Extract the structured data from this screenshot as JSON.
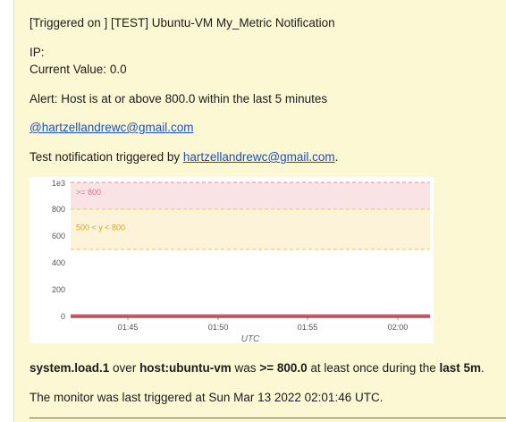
{
  "notification": {
    "title": "[Triggered on ] [TEST] Ubuntu-VM My_Metric Notification",
    "ip_label": "IP:",
    "current_value_label": "Current Value:",
    "current_value": "0.0",
    "alert_text": "Alert: Host is at or above 800.0 within the last 5 minutes",
    "mention_link": "@hartzellandrewc@gmail.com",
    "test_prefix": "Test notification triggered by ",
    "test_link": "hartzellandrewc@gmail.com",
    "test_suffix": ".",
    "summary": {
      "metric": "system.load.1",
      "over": " over ",
      "host": "host:ubuntu-vm",
      "was": " was ",
      "condition": ">= 800.0",
      "mid": " at least once during the ",
      "window": "last 5m",
      "end": "."
    },
    "last_triggered": "The monitor was last triggered at Sun Mar 13 2022 02:01:46 UTC."
  },
  "chart_data": {
    "type": "line",
    "title": "",
    "xlabel": "UTC",
    "ylabel": "",
    "scale_label": "1e3",
    "ylim": [
      0,
      1000
    ],
    "y_ticks": [
      0,
      200,
      400,
      600,
      800
    ],
    "y_tick_labels": [
      "0",
      "200",
      "400",
      "600",
      "800"
    ],
    "x_tick_labels": [
      "01:45",
      "01:50",
      "01:55",
      "02:00"
    ],
    "bands": [
      {
        "label": ">= 800",
        "from": 800,
        "to": 1000,
        "color": "#f9e3e5",
        "line_color": "#e8929a",
        "text_color": "#e0707c"
      },
      {
        "label": "500 < y < 800",
        "from": 500,
        "to": 800,
        "color": "#fdf3d8",
        "line_color": "#e6c455",
        "text_color": "#d9a414"
      }
    ],
    "series": [
      {
        "values": [
          0,
          0,
          0,
          0,
          0,
          0,
          0,
          0,
          0,
          0,
          0,
          0,
          0,
          0,
          0,
          0,
          0,
          0,
          0,
          0,
          0
        ],
        "color": "#e05566"
      }
    ]
  }
}
